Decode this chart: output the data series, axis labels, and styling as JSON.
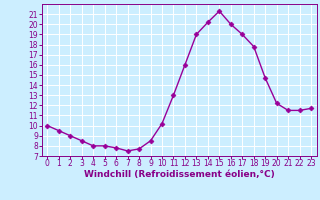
{
  "x": [
    0,
    1,
    2,
    3,
    4,
    5,
    6,
    7,
    8,
    9,
    10,
    11,
    12,
    13,
    14,
    15,
    16,
    17,
    18,
    19,
    20,
    21,
    22,
    23
  ],
  "y": [
    10.0,
    9.5,
    9.0,
    8.5,
    8.0,
    8.0,
    7.8,
    7.5,
    7.7,
    8.5,
    10.2,
    13.0,
    16.0,
    19.0,
    20.2,
    21.3,
    20.0,
    19.0,
    17.8,
    14.7,
    12.2,
    11.5,
    11.5,
    11.7
  ],
  "line_color": "#990099",
  "marker": "D",
  "markersize": 2.5,
  "linewidth": 1.0,
  "bg_color": "#cceeff",
  "grid_color": "#ffffff",
  "xlabel": "Windchill (Refroidissement éolien,°C)",
  "xlabel_color": "#880088",
  "tick_color": "#880088",
  "xlim": [
    -0.5,
    23.5
  ],
  "ylim": [
    7,
    22
  ],
  "yticks": [
    7,
    8,
    9,
    10,
    11,
    12,
    13,
    14,
    15,
    16,
    17,
    18,
    19,
    20,
    21
  ],
  "xticks": [
    0,
    1,
    2,
    3,
    4,
    5,
    6,
    7,
    8,
    9,
    10,
    11,
    12,
    13,
    14,
    15,
    16,
    17,
    18,
    19,
    20,
    21,
    22,
    23
  ],
  "tick_fontsize": 5.5,
  "xlabel_fontsize": 6.5
}
